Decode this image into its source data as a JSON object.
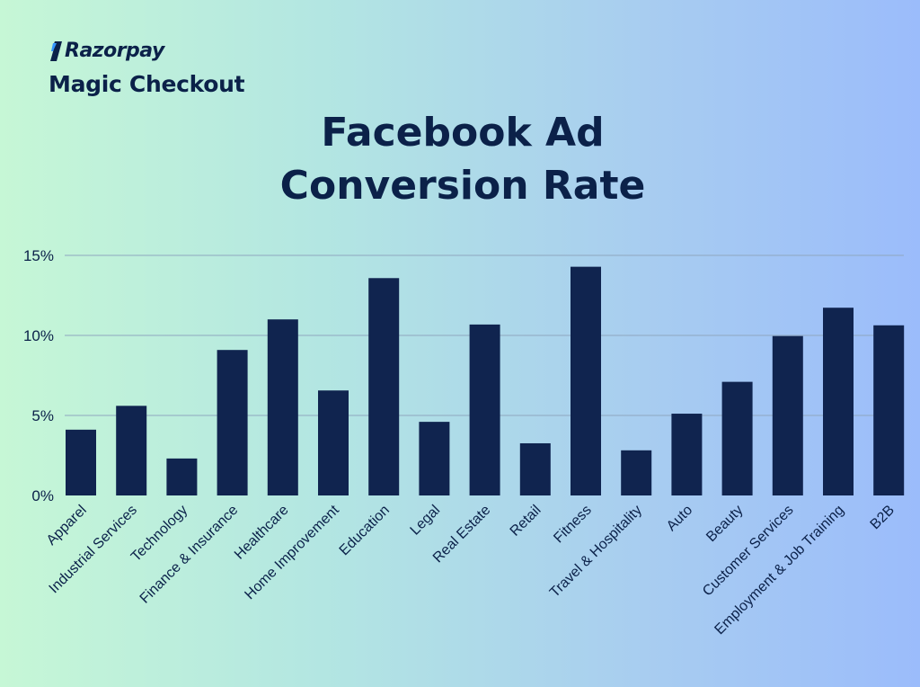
{
  "brand": {
    "logo_text": "Razorpay",
    "product": "Magic Checkout",
    "logo_icon": "razorpay-logo-icon"
  },
  "title_lines": [
    "Facebook Ad",
    "Conversion Rate"
  ],
  "colors": {
    "bar": "#10244f",
    "text": "#0b2149",
    "grid": "#8fa7bf"
  },
  "chart_data": {
    "type": "bar",
    "title": "Facebook Ad Conversion Rate",
    "xlabel": "",
    "ylabel": "",
    "categories": [
      "Apparel",
      "Industrial Services",
      "Technology",
      "Finance & Insurance",
      "Healthcare",
      "Home Improvement",
      "Education",
      "Legal",
      "Real Estate",
      "Retail",
      "Fitness",
      "Travel & Hospitality",
      "Auto",
      "Beauty",
      "Customer Services",
      "Employment & Job Training",
      "B2B"
    ],
    "values": [
      4.11,
      5.6,
      2.31,
      9.09,
      11.0,
      6.56,
      13.58,
      4.6,
      10.68,
      3.26,
      14.29,
      2.82,
      5.11,
      7.1,
      9.96,
      11.73,
      10.63
    ],
    "ylim": [
      0,
      15
    ],
    "yticks": [
      0,
      5,
      10,
      15
    ],
    "ytick_labels": [
      "0%",
      "5%",
      "10%",
      "15%"
    ],
    "grid": true
  }
}
